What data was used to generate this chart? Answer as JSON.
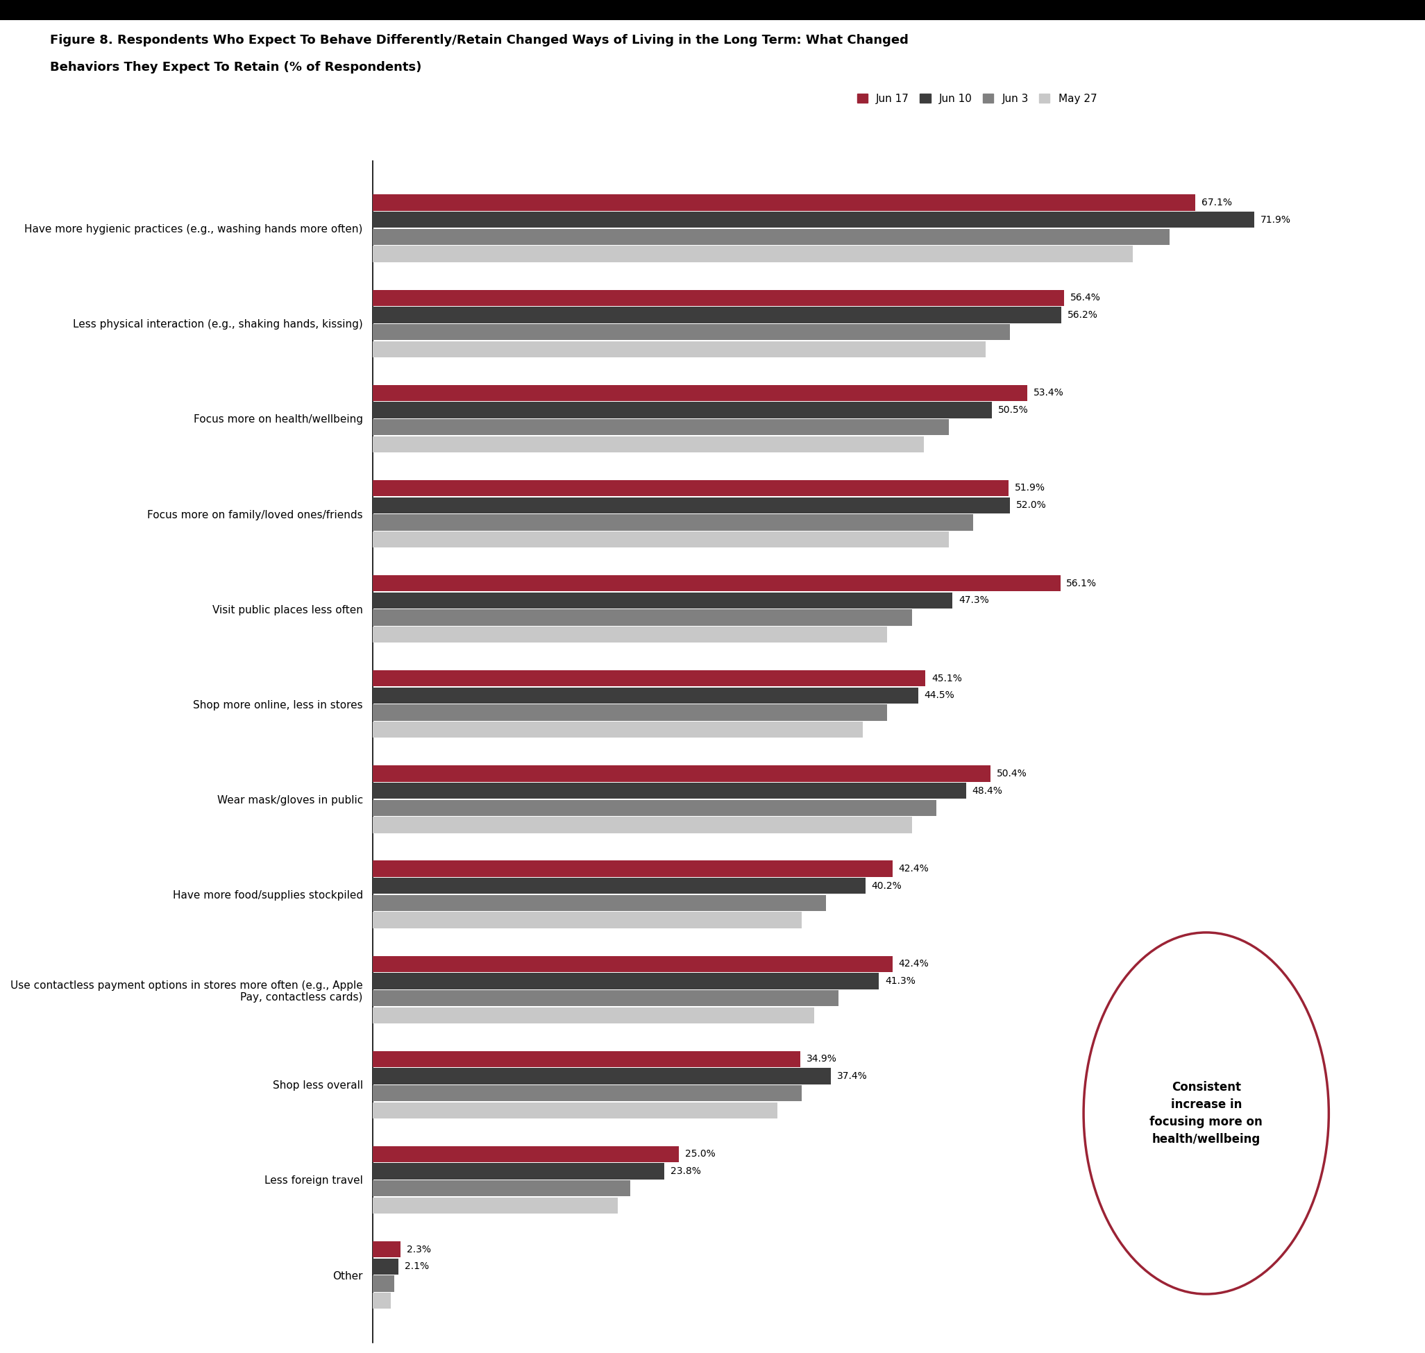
{
  "title_line1": "Figure 8. Respondents Who Expect To Behave Differently/Retain Changed Ways of Living in the Long Term: What Changed",
  "title_line2": "Behaviors They Expect To Retain (% of Respondents)",
  "categories": [
    "Have more hygienic practices (e.g., washing hands more often)",
    "Less physical interaction (e.g., shaking hands, kissing)",
    "Focus more on health/wellbeing",
    "Focus more on family/loved ones/friends",
    "Visit public places less often",
    "Shop more online, less in stores",
    "Wear mask/gloves in public",
    "Have more food/supplies stockpiled",
    "Use contactless payment options in stores more often (e.g., Apple\nPay, contactless cards)",
    "Shop less overall",
    "Less foreign travel",
    "Other"
  ],
  "series": {
    "Jun 17": [
      67.1,
      56.4,
      53.4,
      51.9,
      56.1,
      45.1,
      50.4,
      42.4,
      42.4,
      34.9,
      25.0,
      2.3
    ],
    "Jun 10": [
      71.9,
      56.2,
      50.5,
      52.0,
      47.3,
      44.5,
      48.4,
      40.2,
      41.3,
      37.4,
      23.8,
      2.1
    ],
    "Jun 3": [
      65.0,
      52.0,
      47.0,
      49.0,
      44.0,
      42.0,
      46.0,
      37.0,
      38.0,
      35.0,
      21.0,
      1.8
    ],
    "May 27": [
      62.0,
      50.0,
      45.0,
      47.0,
      42.0,
      40.0,
      44.0,
      35.0,
      36.0,
      33.0,
      20.0,
      1.5
    ]
  },
  "colors": {
    "Jun 17": "#9B2335",
    "Jun 10": "#3D3D3D",
    "Jun 3": "#808080",
    "May 27": "#C8C8C8"
  },
  "annotation_text": "Consistent\nincrease in\nfocusing more on\nhealth/wellbeing",
  "annotation_color": "#9B2335",
  "background_color": "#ffffff",
  "xlim": [
    0,
    85
  ]
}
